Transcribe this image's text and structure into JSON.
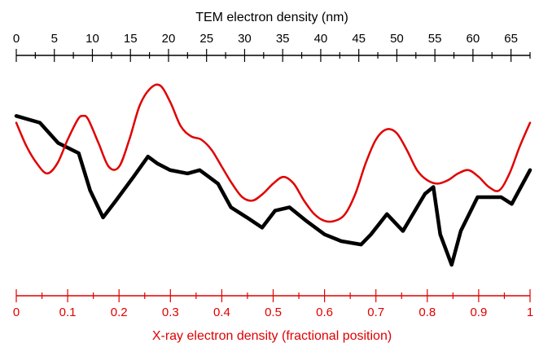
{
  "chart_data": {
    "type": "line",
    "title": "",
    "top_axis": {
      "label": "TEM electron density (nm)",
      "range": [
        0,
        67.5
      ],
      "ticks": [
        "0",
        "5",
        "10",
        "15",
        "20",
        "25",
        "30",
        "35",
        "40",
        "45",
        "50",
        "55",
        "60",
        "65"
      ],
      "color": "#000000"
    },
    "bottom_axis": {
      "label": "X-ray electron density (fractional position)",
      "range": [
        0,
        1
      ],
      "ticks": [
        "0",
        "0.1",
        "0.2",
        "0.3",
        "0.4",
        "0.5",
        "0.6",
        "0.7",
        "0.8",
        "0.9",
        "1"
      ],
      "color": "#e00000"
    },
    "ylabel": "",
    "grid": false,
    "series": [
      {
        "color": "#000000",
        "axis": "top",
        "x": [
          0,
          3.1,
          5.5,
          8.2,
          9.7,
          11.4,
          13.1,
          15.4,
          17.3,
          18.5,
          20.2,
          22.5,
          24.1,
          26.5,
          28.2,
          30.3,
          32.3,
          34.0,
          35.9,
          38.1,
          40.5,
          42.7,
          45.3,
          46.6,
          48.7,
          50.8,
          53.7,
          54.8,
          55.7,
          57.2,
          58.4,
          60.6,
          62.0,
          63.7,
          65.1,
          67.5
        ],
        "values": [
          0.8,
          0.78,
          0.72,
          0.69,
          0.58,
          0.5,
          0.55,
          0.62,
          0.68,
          0.66,
          0.64,
          0.63,
          0.64,
          0.6,
          0.53,
          0.5,
          0.47,
          0.52,
          0.53,
          0.49,
          0.45,
          0.43,
          0.42,
          0.45,
          0.51,
          0.46,
          0.57,
          0.59,
          0.45,
          0.36,
          0.46,
          0.56,
          0.56,
          0.56,
          0.54,
          0.64
        ]
      },
      {
        "color": "#e00000",
        "axis": "bottom",
        "x": [
          0,
          0.02,
          0.04,
          0.06,
          0.08,
          0.1,
          0.12,
          0.13,
          0.14,
          0.16,
          0.18,
          0.2,
          0.22,
          0.24,
          0.26,
          0.28,
          0.3,
          0.32,
          0.34,
          0.36,
          0.38,
          0.4,
          0.42,
          0.44,
          0.46,
          0.48,
          0.5,
          0.52,
          0.54,
          0.56,
          0.58,
          0.6,
          0.62,
          0.64,
          0.66,
          0.68,
          0.7,
          0.72,
          0.74,
          0.76,
          0.78,
          0.8,
          0.82,
          0.84,
          0.86,
          0.88,
          0.9,
          0.92,
          0.94,
          0.96,
          0.98,
          1.0
        ],
        "values": [
          0.78,
          0.71,
          0.66,
          0.63,
          0.66,
          0.73,
          0.79,
          0.8,
          0.79,
          0.72,
          0.65,
          0.65,
          0.73,
          0.83,
          0.88,
          0.89,
          0.84,
          0.77,
          0.74,
          0.73,
          0.7,
          0.65,
          0.6,
          0.56,
          0.55,
          0.57,
          0.6,
          0.62,
          0.6,
          0.55,
          0.51,
          0.49,
          0.49,
          0.51,
          0.57,
          0.66,
          0.73,
          0.76,
          0.75,
          0.7,
          0.64,
          0.61,
          0.6,
          0.61,
          0.63,
          0.64,
          0.62,
          0.59,
          0.58,
          0.63,
          0.71,
          0.78
        ]
      }
    ]
  }
}
